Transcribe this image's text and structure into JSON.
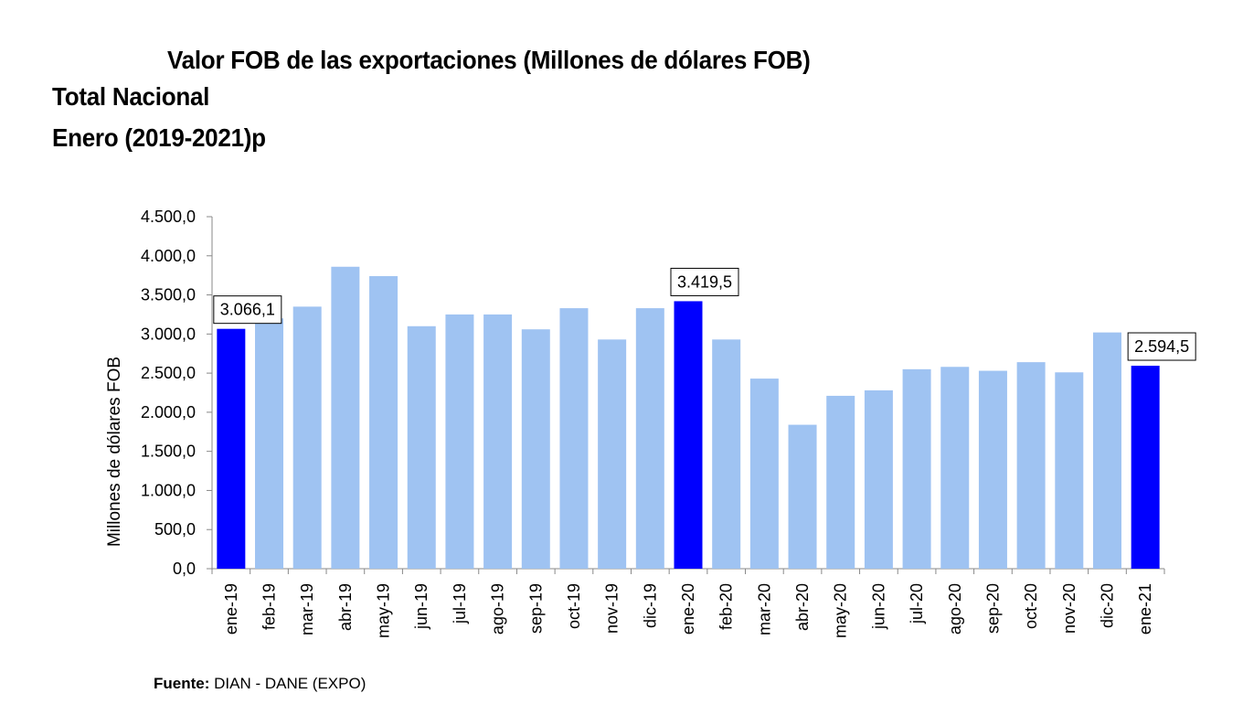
{
  "title": "Valor FOB de las exportaciones (Millones de dólares FOB)",
  "subtitle_line1": "Total Nacional",
  "subtitle_line2": "Enero (2019-2021)p",
  "source": {
    "label": "Fuente:",
    "text": "DIAN - DANE (EXPO)"
  },
  "colors": {
    "highlight": "#0000FF",
    "bar": "#9FC3F2",
    "axis": "#888888"
  },
  "chart_data": {
    "type": "bar",
    "title": "Valor FOB de las exportaciones (Millones de dólares FOB)",
    "xlabel": "",
    "ylabel": "Millones de dólares FOB",
    "ylim": [
      0,
      4500
    ],
    "yticks": [
      0,
      500,
      1000,
      1500,
      2000,
      2500,
      3000,
      3500,
      4000,
      4500
    ],
    "ytick_labels": [
      "0,0",
      "500,0",
      "1.000,0",
      "1.500,0",
      "2.000,0",
      "2.500,0",
      "3.000,0",
      "3.500,0",
      "4.000,0",
      "4.500,0"
    ],
    "categories": [
      "ene-19",
      "feb-19",
      "mar-19",
      "abr-19",
      "may-19",
      "jun-19",
      "jul-19",
      "ago-19",
      "sep-19",
      "oct-19",
      "nov-19",
      "dic-19",
      "ene-20",
      "feb-20",
      "mar-20",
      "abr-20",
      "may-20",
      "jun-20",
      "jul-20",
      "ago-20",
      "sep-20",
      "oct-20",
      "nov-20",
      "dic-20",
      "ene-21"
    ],
    "values": [
      3066.1,
      3200,
      3350,
      3860,
      3740,
      3100,
      3250,
      3250,
      3060,
      3330,
      2930,
      3330,
      3419.5,
      2930,
      2430,
      1840,
      2210,
      2280,
      2550,
      2580,
      2530,
      2640,
      2510,
      3020,
      2594.5
    ],
    "highlighted": [
      "ene-19",
      "ene-20",
      "ene-21"
    ],
    "data_labels": [
      {
        "category": "ene-19",
        "text": "3.066,1"
      },
      {
        "category": "ene-20",
        "text": "3.419,5"
      },
      {
        "category": "ene-21",
        "text": "2.594,5"
      }
    ],
    "grid": false,
    "legend": "none"
  }
}
